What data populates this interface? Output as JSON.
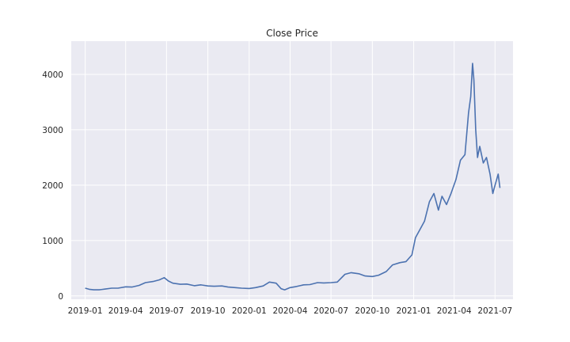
{
  "chart_data": {
    "type": "line",
    "title": "Close Price",
    "xlabel": "",
    "ylabel": "",
    "x_range": [
      "2018-12-01",
      "2021-08-10"
    ],
    "ylim": [
      -60,
      4600
    ],
    "x_ticks": [
      "2019-01-01",
      "2019-04-01",
      "2019-07-01",
      "2019-10-01",
      "2020-01-01",
      "2020-04-01",
      "2020-07-01",
      "2020-10-01",
      "2021-01-01",
      "2021-04-01",
      "2021-07-01"
    ],
    "x_tick_labels": [
      "2019-01",
      "2019-04",
      "2019-07",
      "2019-10",
      "2020-01",
      "2020-04",
      "2020-07",
      "2020-10",
      "2021-01",
      "2021-04",
      "2021-07"
    ],
    "y_ticks": [
      0,
      1000,
      2000,
      3000,
      4000
    ],
    "y_tick_labels": [
      "0",
      "1000",
      "2000",
      "3000",
      "4000"
    ],
    "grid": true,
    "background": "#eaeaf2",
    "grid_color": "#ffffff",
    "line_color": "#4c72b0",
    "series": [
      {
        "x": [
          "2019-01-01",
          "2019-01-10",
          "2019-01-20",
          "2019-02-01",
          "2019-02-15",
          "2019-03-01",
          "2019-03-15",
          "2019-04-01",
          "2019-04-15",
          "2019-05-01",
          "2019-05-15",
          "2019-06-01",
          "2019-06-15",
          "2019-06-26",
          "2019-07-05",
          "2019-07-15",
          "2019-08-01",
          "2019-08-15",
          "2019-09-01",
          "2019-09-15",
          "2019-10-01",
          "2019-10-15",
          "2019-11-01",
          "2019-11-15",
          "2019-12-01",
          "2019-12-15",
          "2020-01-01",
          "2020-01-15",
          "2020-02-01",
          "2020-02-15",
          "2020-03-01",
          "2020-03-12",
          "2020-03-20",
          "2020-04-01",
          "2020-04-15",
          "2020-05-01",
          "2020-05-15",
          "2020-06-01",
          "2020-06-15",
          "2020-07-01",
          "2020-07-15",
          "2020-08-01",
          "2020-08-15",
          "2020-09-01",
          "2020-09-15",
          "2020-10-01",
          "2020-10-15",
          "2020-11-01",
          "2020-11-15",
          "2020-12-01",
          "2020-12-15",
          "2020-12-28",
          "2021-01-05",
          "2021-01-15",
          "2021-01-25",
          "2021-02-05",
          "2021-02-15",
          "2021-02-25",
          "2021-03-05",
          "2021-03-15",
          "2021-03-25",
          "2021-04-05",
          "2021-04-15",
          "2021-04-25",
          "2021-05-03",
          "2021-05-08",
          "2021-05-12",
          "2021-05-15",
          "2021-05-19",
          "2021-05-23",
          "2021-05-28",
          "2021-06-05",
          "2021-06-12",
          "2021-06-20",
          "2021-06-26",
          "2021-07-01",
          "2021-07-08",
          "2021-07-12"
        ],
        "y": [
          140,
          120,
          110,
          110,
          125,
          140,
          140,
          165,
          160,
          190,
          240,
          260,
          290,
          330,
          270,
          230,
          210,
          215,
          185,
          200,
          180,
          175,
          180,
          160,
          150,
          140,
          135,
          150,
          180,
          250,
          230,
          130,
          110,
          150,
          170,
          200,
          205,
          240,
          235,
          240,
          250,
          390,
          420,
          400,
          360,
          350,
          375,
          440,
          560,
          600,
          620,
          740,
          1050,
          1200,
          1350,
          1700,
          1850,
          1550,
          1800,
          1650,
          1850,
          2100,
          2450,
          2550,
          3300,
          3600,
          4200,
          3900,
          3000,
          2500,
          2700,
          2400,
          2500,
          2200,
          1850,
          2000,
          2200,
          1950
        ]
      }
    ]
  }
}
